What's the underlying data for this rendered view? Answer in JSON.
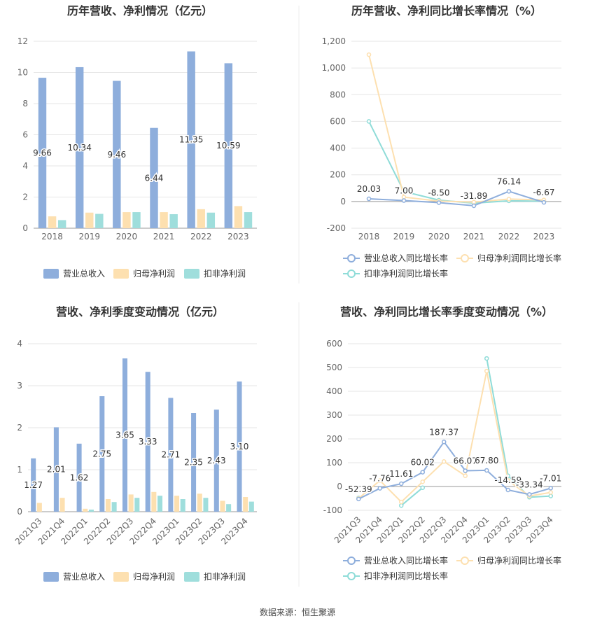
{
  "source_label": "数据来源：恒生聚源",
  "colors": {
    "revenue": "#8eaedc",
    "netprofit": "#fde0b0",
    "deducted": "#9fdedc",
    "revenue_line": "#8eaedc",
    "netprofit_line": "#fde0b0",
    "deducted_line": "#8fdcd8",
    "grid": "#e6e6e6",
    "axis_text": "#666666",
    "title": "#333333"
  },
  "chart_data": [
    {
      "type": "bar",
      "title": "历年营收、净利情况（亿元）",
      "categories": [
        "2018",
        "2019",
        "2020",
        "2021",
        "2022",
        "2023"
      ],
      "ylim": [
        0,
        12
      ],
      "yticks": [
        0,
        2,
        4,
        6,
        8,
        10,
        12
      ],
      "series": [
        {
          "name": "营业总收入",
          "values": [
            9.66,
            10.34,
            9.46,
            6.44,
            11.35,
            10.59
          ],
          "labels": [
            "9.66",
            "10.34",
            "9.46",
            "6.44",
            "11.35",
            "10.59"
          ]
        },
        {
          "name": "归母净利润",
          "values": [
            0.76,
            1.0,
            1.03,
            1.03,
            1.22,
            1.42
          ]
        },
        {
          "name": "扣非净利润",
          "values": [
            0.52,
            0.92,
            1.03,
            0.9,
            1.0,
            1.03
          ]
        }
      ],
      "legend": "bottom"
    },
    {
      "type": "line",
      "title": "历年营收、净利同比增长率情况（%）",
      "categories": [
        "2018",
        "2019",
        "2020",
        "2021",
        "2022",
        "2023"
      ],
      "ylim": [
        -200,
        1200
      ],
      "yticks": [
        -200,
        0,
        200,
        400,
        600,
        800,
        1000,
        1200
      ],
      "ytick_labels": [
        "-200",
        "0",
        "200",
        "400",
        "600",
        "800",
        "1,000",
        "1,200"
      ],
      "series": [
        {
          "name": "营业总收入同比增长率",
          "values": [
            20.03,
            7.0,
            -8.5,
            -31.89,
            76.14,
            -6.67
          ],
          "labels": [
            "20.03",
            "7.00",
            "-8.50",
            "-31.89",
            "76.14",
            "-6.67"
          ]
        },
        {
          "name": "归母净利润同比增长率",
          "values": [
            1100,
            33,
            3,
            -5,
            18,
            12
          ]
        },
        {
          "name": "扣非净利润同比增长率",
          "values": [
            600,
            75,
            10,
            -13,
            5,
            3
          ]
        }
      ],
      "legend": "bottom"
    },
    {
      "type": "bar",
      "title": "营收、净利季度变动情况（亿元）",
      "categories": [
        "2021Q3",
        "2021Q4",
        "2022Q1",
        "2022Q2",
        "2022Q3",
        "2022Q4",
        "2023Q1",
        "2023Q2",
        "2023Q3",
        "2023Q4"
      ],
      "ylim": [
        0,
        4
      ],
      "yticks": [
        0,
        1,
        2,
        3,
        4
      ],
      "series": [
        {
          "name": "营业总收入",
          "values": [
            1.27,
            2.01,
            1.62,
            2.75,
            3.65,
            3.33,
            2.71,
            2.35,
            2.43,
            3.1
          ],
          "labels": [
            "1.27",
            "2.01",
            "1.62",
            "2.75",
            "3.65",
            "3.33",
            "2.71",
            "2.35",
            "2.43",
            "3.10"
          ]
        },
        {
          "name": "归母净利润",
          "values": [
            0.21,
            0.33,
            0.07,
            0.3,
            0.41,
            0.47,
            0.38,
            0.43,
            0.26,
            0.35
          ]
        },
        {
          "name": "扣非净利润",
          "values": [
            0.0,
            0.0,
            0.05,
            0.23,
            0.33,
            0.38,
            0.3,
            0.33,
            0.18,
            0.24
          ]
        }
      ],
      "legend": "bottom"
    },
    {
      "type": "line",
      "title": "营收、净利同比增长率季度变动情况（%）",
      "categories": [
        "2021Q3",
        "2021Q4",
        "2022Q1",
        "2022Q2",
        "2022Q3",
        "2022Q4",
        "2023Q1",
        "2023Q2",
        "2023Q3",
        "2023Q4"
      ],
      "ylim": [
        -100,
        600
      ],
      "yticks": [
        -100,
        0,
        100,
        200,
        300,
        400,
        500,
        600
      ],
      "series": [
        {
          "name": "营业总收入同比增长率",
          "values": [
            -52.39,
            -7.76,
            11.61,
            60.02,
            187.37,
            66.07,
            67.8,
            -14.59,
            -33.34,
            -7.01
          ],
          "labels": [
            "-52.39",
            "-7.76",
            "11.61",
            "60.02",
            "187.37",
            "66.07",
            "67.80",
            "-14.59",
            "-33.34",
            "-7.01"
          ]
        },
        {
          "name": "归母净利润同比增长率",
          "values": [
            -50,
            25,
            -65,
            20,
            105,
            45,
            485,
            25,
            -40,
            -25
          ]
        },
        {
          "name": "扣非净利润同比增长率",
          "values": [
            -48,
            null,
            -80,
            -5,
            null,
            null,
            538,
            45,
            -45,
            -40
          ]
        }
      ],
      "legend": "bottom"
    }
  ]
}
